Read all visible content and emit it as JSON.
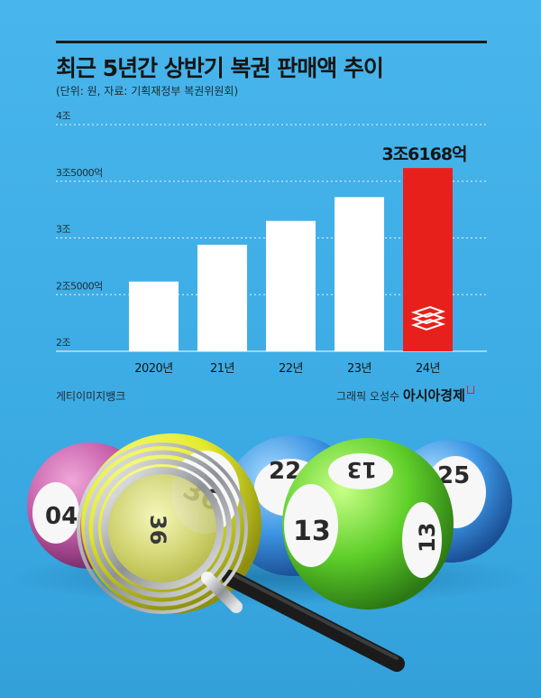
{
  "title": "최근 5년간 상반기 복권 판매액 추이",
  "subtitle": "(단위: 원, 자료: 기획재정부 복권위원회)",
  "credit_left": "게티이미지뱅크",
  "credit_right_prefix": "그래픽 오성수",
  "credit_right_brand": "아시아경제",
  "colors": {
    "background": "#45b4ea",
    "bar": "#ffffff",
    "highlight_bar": "#e8201c",
    "text": "#151515"
  },
  "icon": "money-stack-icon",
  "ball_numbers": [
    "04",
    "36",
    "22",
    "13",
    "25",
    "13",
    "36",
    "13"
  ],
  "chart_data": {
    "type": "bar",
    "categories": [
      "2020년",
      "21년",
      "22년",
      "23년",
      "24년"
    ],
    "values": [
      26150,
      29400,
      31500,
      33600,
      36168
    ],
    "ylim": [
      20000,
      40000
    ],
    "yticks": [
      {
        "value": 20000,
        "label": "2조"
      },
      {
        "value": 25000,
        "label": "2조5000억"
      },
      {
        "value": 30000,
        "label": "3조"
      },
      {
        "value": 35000,
        "label": "3조5000억"
      },
      {
        "value": 40000,
        "label": "4조"
      }
    ],
    "highlight_index": 4,
    "highlight_label": "3조6168억",
    "grid": true,
    "grid_style": "dashed"
  }
}
